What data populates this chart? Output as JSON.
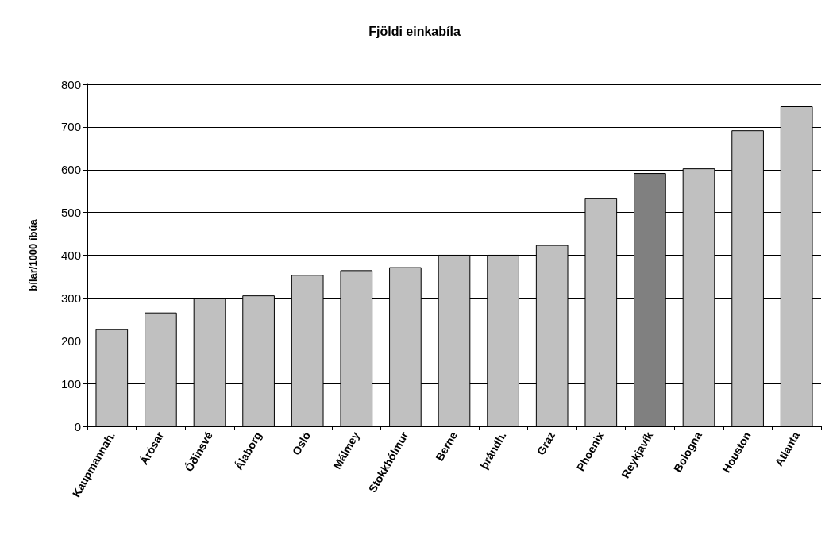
{
  "chart_data": {
    "type": "bar",
    "title": "Fjöldi einkabíla",
    "ylabel": "bílar/1000 íbúa",
    "categories": [
      "Kaupmannah.",
      "Árósar",
      "Óðinsvé",
      "Álaborg",
      "Osló",
      "Málmey",
      "Stokkhólmur",
      "Berne",
      "þrándh.",
      "Graz",
      "Phoenix",
      "Reykjavík",
      "Bologna",
      "Houston",
      "Atlanta"
    ],
    "values": [
      227,
      266,
      299,
      306,
      354,
      365,
      372,
      401,
      401,
      424,
      533,
      592,
      603,
      692,
      748
    ],
    "colors": [
      "#c0c0c0",
      "#c0c0c0",
      "#c0c0c0",
      "#c0c0c0",
      "#c0c0c0",
      "#c0c0c0",
      "#c0c0c0",
      "#c0c0c0",
      "#c0c0c0",
      "#c0c0c0",
      "#c0c0c0",
      "#808080",
      "#c0c0c0",
      "#c0c0c0",
      "#c0c0c0"
    ],
    "ylim": [
      0,
      800
    ],
    "yticks": [
      0,
      100,
      200,
      300,
      400,
      500,
      600,
      700,
      800
    ],
    "grid": "y"
  }
}
